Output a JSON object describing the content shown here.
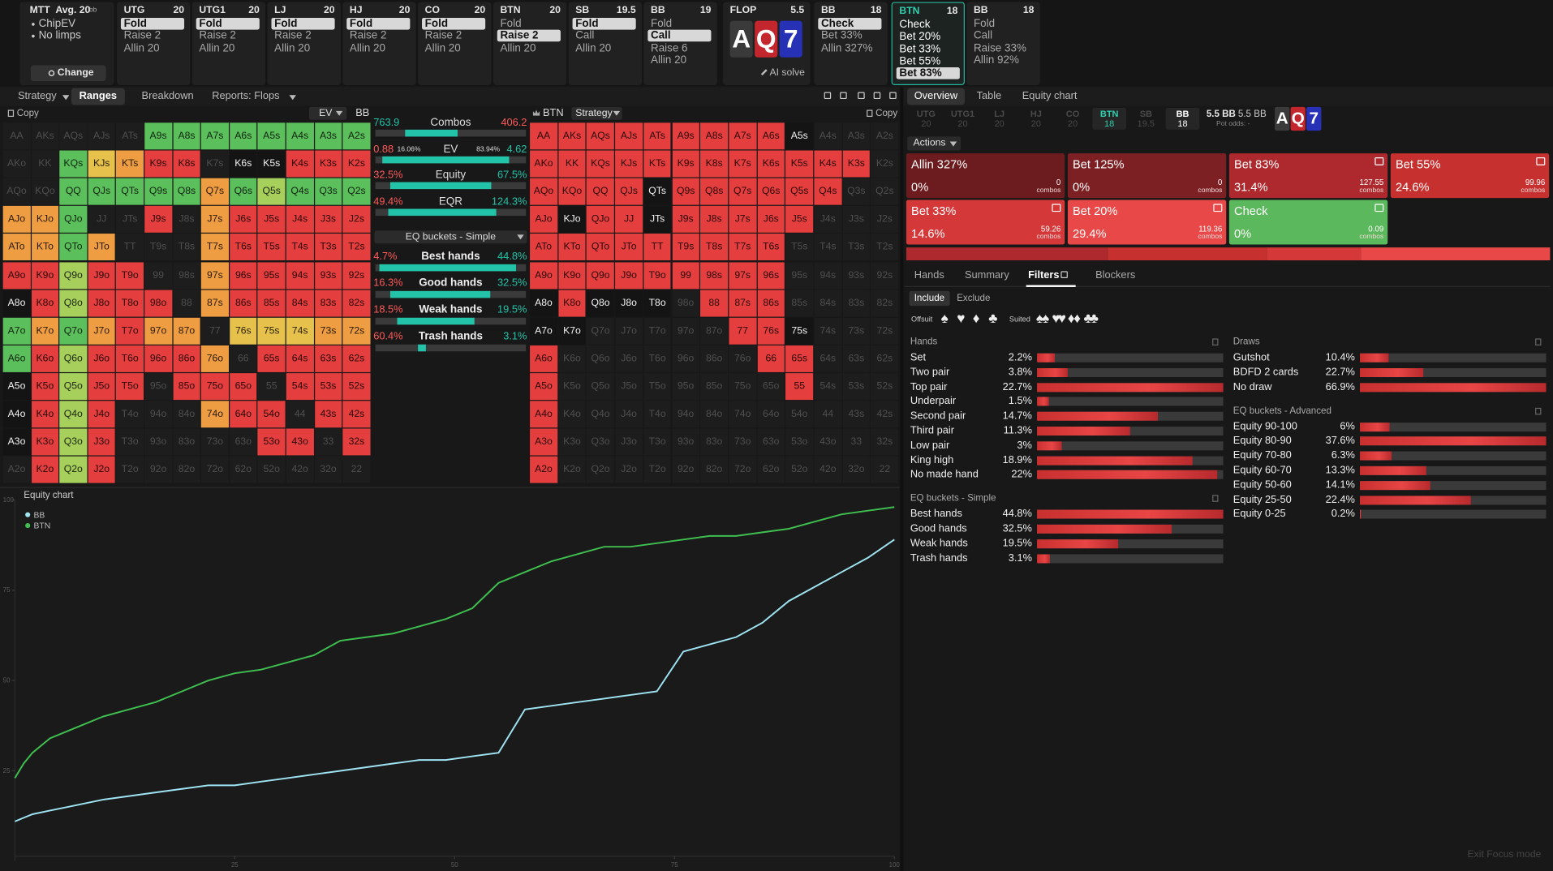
{
  "top_bar": {
    "mtt": {
      "title": "MTT",
      "avg": "Avg. 20",
      "avg_unit": "bb",
      "options": [
        "ChipEV",
        "No limps"
      ],
      "button": "Change"
    },
    "players": [
      {
        "pos": "UTG",
        "stack": "20",
        "actions": [
          "Fold",
          "Raise 2",
          "Allin 20"
        ],
        "selected": 0
      },
      {
        "pos": "UTG1",
        "stack": "20",
        "actions": [
          "Fold",
          "Raise 2",
          "Allin 20"
        ],
        "selected": 0
      },
      {
        "pos": "LJ",
        "stack": "20",
        "actions": [
          "Fold",
          "Raise 2",
          "Allin 20"
        ],
        "selected": 0
      },
      {
        "pos": "HJ",
        "stack": "20",
        "actions": [
          "Fold",
          "Raise 2",
          "Allin 20"
        ],
        "selected": 0
      },
      {
        "pos": "CO",
        "stack": "20",
        "actions": [
          "Fold",
          "Raise 2",
          "Allin 20"
        ],
        "selected": 0
      },
      {
        "pos": "BTN",
        "stack": "20",
        "actions": [
          "Fold",
          "Raise 2",
          "Allin 20"
        ],
        "selected": 1
      },
      {
        "pos": "SB",
        "stack": "19.5",
        "actions": [
          "Fold",
          "Call",
          "Allin 20"
        ],
        "selected": 0
      },
      {
        "pos": "BB",
        "stack": "19",
        "actions": [
          "Fold",
          "Call",
          "Raise 6",
          "Allin 20"
        ],
        "selected": 1
      },
      {
        "pos": "BB",
        "stack": "18",
        "actions": [
          "Check",
          "Bet 33%",
          "Allin 327%"
        ],
        "selected": 0
      },
      {
        "pos": "BTN",
        "stack": "18",
        "actions": [
          "Check",
          "Bet 20%",
          "Bet 33%",
          "Bet 55%",
          "Bet 83%"
        ],
        "selected": 4,
        "active": true
      },
      {
        "pos": "BB",
        "stack": "18",
        "actions": [
          "Fold",
          "Call",
          "Raise 33%",
          "Allin 92%"
        ]
      }
    ],
    "flop": {
      "label": "FLOP",
      "pot": "5.5",
      "cards": [
        {
          "rank": "A",
          "color": "#3a3a3a"
        },
        {
          "rank": "Q",
          "color": "#c3272d"
        },
        {
          "rank": "7",
          "color": "#2731b5"
        }
      ],
      "ai": "AI solve"
    }
  },
  "left_tabs": {
    "items": [
      "Strategy",
      "Ranges",
      "Breakdown",
      "Reports: Flops"
    ],
    "active": 1
  },
  "right_tabs": {
    "items": [
      "Overview",
      "Table",
      "Equity chart"
    ],
    "active": 0
  },
  "hands": [
    [
      "AA",
      "AKs",
      "AQs",
      "AJs",
      "ATs",
      "A9s",
      "A8s",
      "A7s",
      "A6s",
      "A5s",
      "A4s",
      "A3s",
      "A2s"
    ],
    [
      "AKo",
      "KK",
      "KQs",
      "KJs",
      "KTs",
      "K9s",
      "K8s",
      "K7s",
      "K6s",
      "K5s",
      "K4s",
      "K3s",
      "K2s"
    ],
    [
      "AQo",
      "KQo",
      "QQ",
      "QJs",
      "QTs",
      "Q9s",
      "Q8s",
      "Q7s",
      "Q6s",
      "Q5s",
      "Q4s",
      "Q3s",
      "Q2s"
    ],
    [
      "AJo",
      "KJo",
      "QJo",
      "JJ",
      "JTs",
      "J9s",
      "J8s",
      "J7s",
      "J6s",
      "J5s",
      "J4s",
      "J3s",
      "J2s"
    ],
    [
      "ATo",
      "KTo",
      "QTo",
      "JTo",
      "TT",
      "T9s",
      "T8s",
      "T7s",
      "T6s",
      "T5s",
      "T4s",
      "T3s",
      "T2s"
    ],
    [
      "A9o",
      "K9o",
      "Q9o",
      "J9o",
      "T9o",
      "99",
      "98s",
      "97s",
      "96s",
      "95s",
      "94s",
      "93s",
      "92s"
    ],
    [
      "A8o",
      "K8o",
      "Q8o",
      "J8o",
      "T8o",
      "98o",
      "88",
      "87s",
      "86s",
      "85s",
      "84s",
      "83s",
      "82s"
    ],
    [
      "A7o",
      "K7o",
      "Q7o",
      "J7o",
      "T7o",
      "97o",
      "87o",
      "77",
      "76s",
      "75s",
      "74s",
      "73s",
      "72s"
    ],
    [
      "A6o",
      "K6o",
      "Q6o",
      "J6o",
      "T6o",
      "96o",
      "86o",
      "76o",
      "66",
      "65s",
      "64s",
      "63s",
      "62s"
    ],
    [
      "A5o",
      "K5o",
      "Q5o",
      "J5o",
      "T5o",
      "95o",
      "85o",
      "75o",
      "65o",
      "55",
      "54s",
      "53s",
      "52s"
    ],
    [
      "A4o",
      "K4o",
      "Q4o",
      "J4o",
      "T4o",
      "94o",
      "84o",
      "74o",
      "64o",
      "54o",
      "44",
      "43s",
      "42s"
    ],
    [
      "A3o",
      "K3o",
      "Q3o",
      "J3o",
      "T3o",
      "93o",
      "83o",
      "73o",
      "63o",
      "53o",
      "43o",
      "33",
      "32s"
    ],
    [
      "A2o",
      "K2o",
      "Q2o",
      "J2o",
      "T2o",
      "92o",
      "82o",
      "72o",
      "62o",
      "52o",
      "42o",
      "32o",
      "22"
    ]
  ],
  "palette": {
    "-": {
      "bg": "#1d1d1d",
      "fg": "#4f4f4f"
    },
    "g": {
      "bg": "#5bbf5b",
      "fg": "#10230f"
    },
    "l": {
      "bg": "#a6cf5c",
      "fg": "#1d2410"
    },
    "y": {
      "bg": "#e6c14c",
      "fg": "#2a2208"
    },
    "o": {
      "bg": "#ee9d42",
      "fg": "#2a1a06"
    },
    "r": {
      "bg": "#e43e3e",
      "fg": "#2a0808"
    },
    "w": {
      "bg": "#141414",
      "fg": "#f2f2f2"
    }
  },
  "ev_grid": {
    "copy": "Copy",
    "mode": "EV",
    "player": "BB",
    "cells": [
      "-----gggggggg",
      "--gyorr-wwrrr",
      "--gggggoglggg",
      "oog--r-orrrrr",
      "oogo---orrrrr",
      "rrlrr--orrrrr",
      "wrlrrr-orrrrr",
      "gogoroo-yyyoo",
      "grlrrrro-rrrr",
      "wrlrr-rrr-rrr",
      "wrlr---orr-rr",
      "wrlr-----rr-r",
      "-rlr---------"
    ]
  },
  "strategy_grid": {
    "player": "BTN",
    "mode": "Strategy",
    "copy": "Copy",
    "cells": [
      "rrrrrrrrrw---",
      "rrrrrrrrrrrr-",
      "rrrrwrrrrrr--",
      "rwrrwrrrrr---",
      "rrrrrrrrr----",
      "rrrrrrrrr----",
      "wrwww-rrr----",
      "ww-----rrw---",
      "r-------rr---",
      "r--------r---",
      "r------------",
      "r------------",
      "r------------"
    ]
  },
  "comparison": {
    "rows": [
      {
        "label": "Combos",
        "left": "763.9",
        "right": "406.2",
        "left_color": "#22c3a9",
        "right_color": "#ff5a5a"
      },
      {
        "label": "EV",
        "left": "0.88",
        "left_pct": "16.06%",
        "right_pct": "83.94%",
        "right": "4.62",
        "left_color": "#ff5a5a",
        "right_color": "#22c3a9"
      },
      {
        "label": "Equity",
        "left": "32.5%",
        "right": "67.5%",
        "left_color": "#ff5a5a",
        "right_color": "#22c3a9"
      },
      {
        "label": "EQR",
        "left": "49.4%",
        "right": "124.3%",
        "left_color": "#ff5a5a",
        "right_color": "#22c3a9"
      }
    ],
    "dropdown": "EQ buckets - Simple",
    "buckets": [
      {
        "label": "Best hands",
        "left": "4.7%",
        "right": "44.8%"
      },
      {
        "label": "Good hands",
        "left": "16.3%",
        "right": "32.5%"
      },
      {
        "label": "Weak hands",
        "left": "18.5%",
        "right": "19.5%"
      },
      {
        "label": "Trash hands",
        "left": "60.4%",
        "right": "3.1%"
      }
    ]
  },
  "position_strip": {
    "items": [
      {
        "pos": "UTG",
        "stack": "20"
      },
      {
        "pos": "UTG1",
        "stack": "20"
      },
      {
        "pos": "LJ",
        "stack": "20"
      },
      {
        "pos": "HJ",
        "stack": "20"
      },
      {
        "pos": "CO",
        "stack": "20"
      },
      {
        "pos": "BTN",
        "stack": "18"
      },
      {
        "pos": "SB",
        "stack": "19.5"
      },
      {
        "pos": "BB",
        "stack": "18"
      }
    ],
    "active": 5,
    "current": 7,
    "pot": "5.5 BB",
    "stack_total": "5.5 BB",
    "pot_odds": "Pot odds: -"
  },
  "actions": {
    "label": "Actions",
    "combos_label": "combos",
    "tiles": [
      {
        "name": "Allin 327%",
        "freq": "0%",
        "combos": "0",
        "color": "#6c1b1e"
      },
      {
        "name": "Bet 125%",
        "freq": "0%",
        "combos": "0",
        "color": "#7c2024"
      },
      {
        "name": "Bet 83%",
        "freq": "31.4%",
        "combos": "127.55",
        "color": "#ad292d"
      },
      {
        "name": "Bet 55%",
        "freq": "24.6%",
        "combos": "99.96",
        "color": "#c6302f"
      },
      {
        "name": "Bet 33%",
        "freq": "14.6%",
        "combos": "59.26",
        "color": "#d53838"
      },
      {
        "name": "Bet 20%",
        "freq": "29.4%",
        "combos": "119.36",
        "color": "#e84848"
      },
      {
        "name": "Check",
        "freq": "0%",
        "combos": "0.09",
        "color": "#5cb85c"
      }
    ]
  },
  "filter_tabs": {
    "items": [
      "Hands",
      "Summary",
      "Filters",
      "Blockers"
    ],
    "active": 2
  },
  "include": {
    "items": [
      "Include",
      "Exclude"
    ],
    "active": 0
  },
  "suits": {
    "offsuit": "Offsuit",
    "suited": "Suited",
    "symbols": [
      "♠",
      "♥",
      "♦",
      "♣"
    ]
  },
  "hand_groups": [
    {
      "title": "Hands",
      "rows": [
        {
          "label": "Set",
          "pct": "2.2%"
        },
        {
          "label": "Two pair",
          "pct": "3.8%"
        },
        {
          "label": "Top pair",
          "pct": "22.7%"
        },
        {
          "label": "Underpair",
          "pct": "1.5%"
        },
        {
          "label": "Second pair",
          "pct": "14.7%"
        },
        {
          "label": "Third pair",
          "pct": "11.3%"
        },
        {
          "label": "Low pair",
          "pct": "3%"
        },
        {
          "label": "King high",
          "pct": "18.9%"
        },
        {
          "label": "No made hand",
          "pct": "22%"
        }
      ]
    },
    {
      "title": "EQ buckets - Simple",
      "rows": [
        {
          "label": "Best hands",
          "pct": "44.8%"
        },
        {
          "label": "Good hands",
          "pct": "32.5%"
        },
        {
          "label": "Weak hands",
          "pct": "19.5%"
        },
        {
          "label": "Trash hands",
          "pct": "3.1%"
        }
      ]
    }
  ],
  "draw_groups": [
    {
      "title": "Draws",
      "rows": [
        {
          "label": "Gutshot",
          "pct": "10.4%"
        },
        {
          "label": "BDFD 2 cards",
          "pct": "22.7%"
        },
        {
          "label": "No draw",
          "pct": "66.9%"
        }
      ]
    },
    {
      "title": "EQ buckets - Advanced",
      "rows": [
        {
          "label": "Equity 90-100",
          "pct": "6%"
        },
        {
          "label": "Equity 80-90",
          "pct": "37.6%"
        },
        {
          "label": "Equity 70-80",
          "pct": "6.3%"
        },
        {
          "label": "Equity 60-70",
          "pct": "13.3%"
        },
        {
          "label": "Equity 50-60",
          "pct": "14.1%"
        },
        {
          "label": "Equity 25-50",
          "pct": "22.4%"
        },
        {
          "label": "Equity 0-25",
          "pct": "0.2%"
        }
      ]
    }
  ],
  "footer": "Exit Focus mode",
  "chart_data": {
    "type": "line",
    "title": "Equity chart",
    "x": [
      0,
      1,
      2,
      4,
      6,
      8,
      10,
      13,
      16,
      19,
      22,
      25,
      28,
      31,
      34,
      37,
      40,
      43,
      46,
      49,
      52,
      55,
      58,
      61,
      64,
      67,
      70,
      73,
      76,
      79,
      82,
      85,
      88,
      91,
      94,
      97,
      100
    ],
    "series": [
      {
        "name": "BB",
        "color": "#9fe4f3",
        "values": [
          11,
          12,
          13,
          14,
          15,
          16,
          17,
          18,
          19,
          20,
          21,
          21,
          22,
          23,
          24,
          25,
          26,
          27,
          28,
          28,
          29,
          30,
          42,
          43,
          44,
          45,
          46,
          47,
          58,
          60,
          62,
          66,
          72,
          76,
          80,
          84,
          89
        ]
      },
      {
        "name": "BTN",
        "color": "#3fbf4f",
        "values": [
          23,
          27,
          30,
          34,
          36,
          38,
          40,
          42,
          44,
          47,
          50,
          52,
          53,
          55,
          57,
          61,
          62,
          63,
          65,
          67,
          70,
          77,
          80,
          83,
          85,
          87,
          87,
          88,
          89,
          90,
          90,
          91,
          92,
          94,
          96,
          97,
          98
        ]
      }
    ],
    "xlim": [
      0,
      100
    ],
    "ylim": [
      0,
      100
    ],
    "xticks": [
      25,
      50,
      75,
      100
    ],
    "yticks": [
      25,
      50,
      75,
      100
    ]
  }
}
